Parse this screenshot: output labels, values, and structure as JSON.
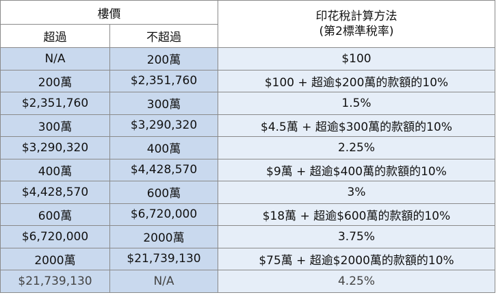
{
  "header": {
    "price": "樓價",
    "exceed": "超過",
    "not_exceed": "不超過",
    "method_line1": "印花稅計算方法",
    "method_line2": "(第2標準稅率)"
  },
  "rows": [
    {
      "over": "N/A",
      "upto": "200萬",
      "method": "$100"
    },
    {
      "over": "200萬",
      "upto": "$2,351,760",
      "method": "$100 + 超逾$200萬的款額的10%"
    },
    {
      "over": "$2,351,760",
      "upto": "300萬",
      "method": "1.5%"
    },
    {
      "over": "300萬",
      "upto": "$3,290,320",
      "method": "$4.5萬 + 超逾$300萬的款額的10%"
    },
    {
      "over": "$3,290,320",
      "upto": "400萬",
      "method": "2.25%"
    },
    {
      "over": "400萬",
      "upto": "$4,428,570",
      "method": "$9萬 + 超逾$400萬的款額的10%"
    },
    {
      "over": "$4,428,570",
      "upto": "600萬",
      "method": "3%"
    },
    {
      "over": "600萬",
      "upto": "$6,720,000",
      "method": "$18萬 + 超逾$600萬的款額的10%"
    },
    {
      "over": "$6,720,000",
      "upto": "2000萬",
      "method": "3.75%"
    },
    {
      "over": "2000萬",
      "upto": "$21,739,130",
      "method": "$75萬 + 超逾$2000萬的款額的10%"
    },
    {
      "over": "$21,739,130",
      "upto": "N/A",
      "method": "4.25%"
    }
  ]
}
